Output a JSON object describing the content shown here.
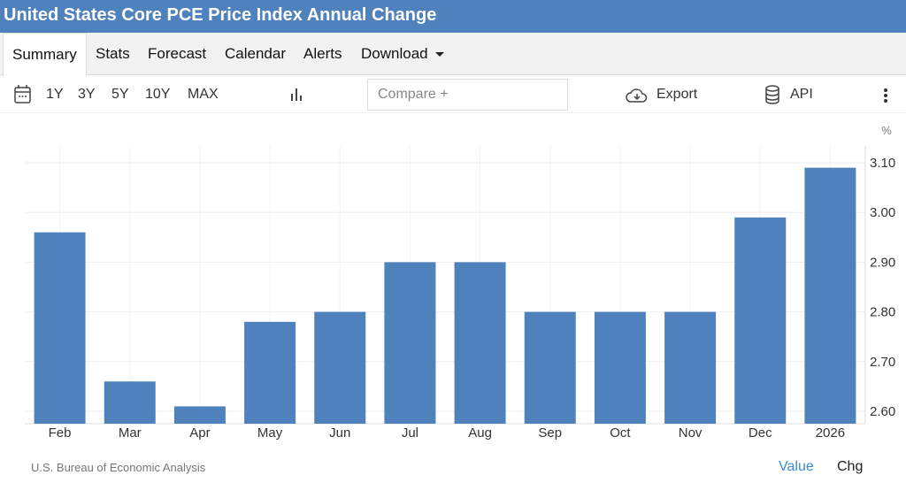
{
  "title": "United States Core PCE Price Index Annual Change",
  "tabs": [
    "Summary",
    "Stats",
    "Forecast",
    "Calendar",
    "Alerts",
    "Download"
  ],
  "toolbar": {
    "ranges": [
      "1Y",
      "3Y",
      "5Y",
      "10Y",
      "MAX"
    ],
    "compare_placeholder": "Compare +",
    "export": "Export",
    "api": "API"
  },
  "footer": {
    "source": "U.S. Bureau of Economic Analysis",
    "value": "Value",
    "chg": "Chg"
  },
  "colors": {
    "bar": "#4f81bd",
    "title_bg": "#4f81bd",
    "link": "#3a8ad6"
  },
  "chart_data": {
    "type": "bar",
    "title": "United States Core PCE Price Index Annual Change",
    "ylabel": "%",
    "categories": [
      "Feb",
      "Mar",
      "Apr",
      "May",
      "Jun",
      "Jul",
      "Aug",
      "Sep",
      "Oct",
      "Nov",
      "Dec",
      "2026"
    ],
    "values": [
      2.96,
      2.66,
      2.61,
      2.78,
      2.8,
      2.9,
      2.9,
      2.8,
      2.8,
      2.8,
      2.99,
      3.09
    ],
    "yticks": [
      "3.10",
      "3.00",
      "2.90",
      "2.80",
      "2.70",
      "2.60"
    ],
    "ylim": [
      2.575,
      3.13
    ],
    "grid": true
  }
}
